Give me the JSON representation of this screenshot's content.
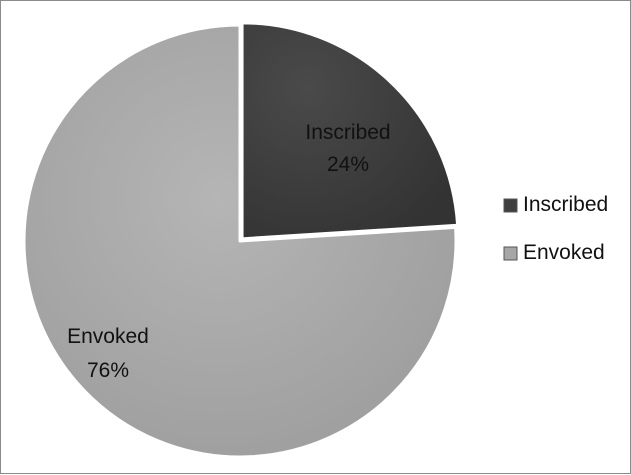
{
  "chart_data": {
    "type": "pie",
    "title": "",
    "categories": [
      "Inscribed",
      "Envoked"
    ],
    "values": [
      24,
      76
    ],
    "value_labels": [
      "24%",
      "76%"
    ],
    "series": [
      {
        "name": "Inscribed",
        "value": 24,
        "label": "24%",
        "color": "#3f3f3f"
      },
      {
        "name": "Envoked",
        "value": 76,
        "label": "76%",
        "color": "#a6a6a6"
      }
    ],
    "start_angle_deg": 0,
    "direction": "clockwise",
    "exploded_slice": "Inscribed",
    "legend": {
      "position": "right",
      "entries": [
        "Inscribed",
        "Envoked"
      ]
    },
    "colors": {
      "Inscribed": "#3f3f3f",
      "Envoked": "#a6a6a6",
      "separator": "#ffffff",
      "border": "#8a8a8a"
    }
  }
}
